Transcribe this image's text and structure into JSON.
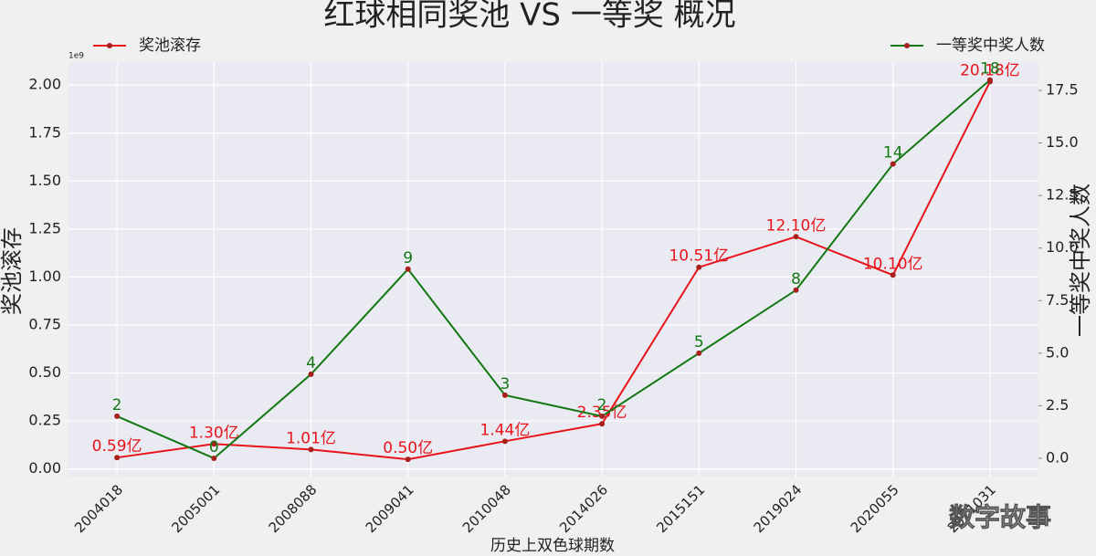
{
  "chart_data": {
    "type": "line",
    "title": "红球相同奖池 VS 一等奖 概况",
    "x_label": "历史上双色球期数",
    "y_label": "奖池滚存",
    "y2_label": "一等奖中奖人数",
    "y_offset_text": "1e9",
    "watermark": "数字故事",
    "categories": [
      "2004018",
      "2005001",
      "2008088",
      "2009041",
      "2010048",
      "2014026",
      "2015151",
      "2019024",
      "2020055",
      "2021031"
    ],
    "series": [
      {
        "name": "奖池滚存",
        "color": "#e8141b",
        "axis": "y",
        "values": [
          0.059,
          0.13,
          0.101,
          0.05,
          0.144,
          0.235,
          1.051,
          1.21,
          1.01,
          2.018
        ],
        "value_labels": [
          "0.59亿",
          "1.30亿",
          "1.01亿",
          "0.50亿",
          "1.44亿",
          "2.35亿",
          "10.51亿",
          "12.10亿",
          "10.10亿",
          "20.18亿"
        ]
      },
      {
        "name": "一等奖中奖人数",
        "color": "#127812",
        "axis": "y2",
        "values": [
          2,
          0,
          4,
          9,
          3,
          2,
          5,
          8,
          14,
          18
        ]
      }
    ],
    "ylim": [
      -0.04,
      2.12
    ],
    "yticks": [
      {
        "value": 0,
        "label": "0.00"
      },
      0.25,
      {
        "value": 0.5,
        "label": "0.50"
      },
      0.75,
      {
        "value": 1,
        "label": "1.00"
      },
      1.25,
      {
        "value": 1.5,
        "label": "1.50"
      },
      1.75,
      {
        "value": 2,
        "label": "2.00"
      }
    ],
    "y2lim": [
      -0.87,
      18.85
    ],
    "y2ticks": [
      {
        "value": 0,
        "label": "0.0"
      },
      2.5,
      {
        "value": 5,
        "label": "5.0"
      },
      7.5,
      {
        "value": 10,
        "label": "10.0"
      },
      12.5,
      {
        "value": 15,
        "label": "15.0"
      },
      17.5
    ],
    "grid": true,
    "legend": [
      "top-left",
      "top-right"
    ]
  }
}
